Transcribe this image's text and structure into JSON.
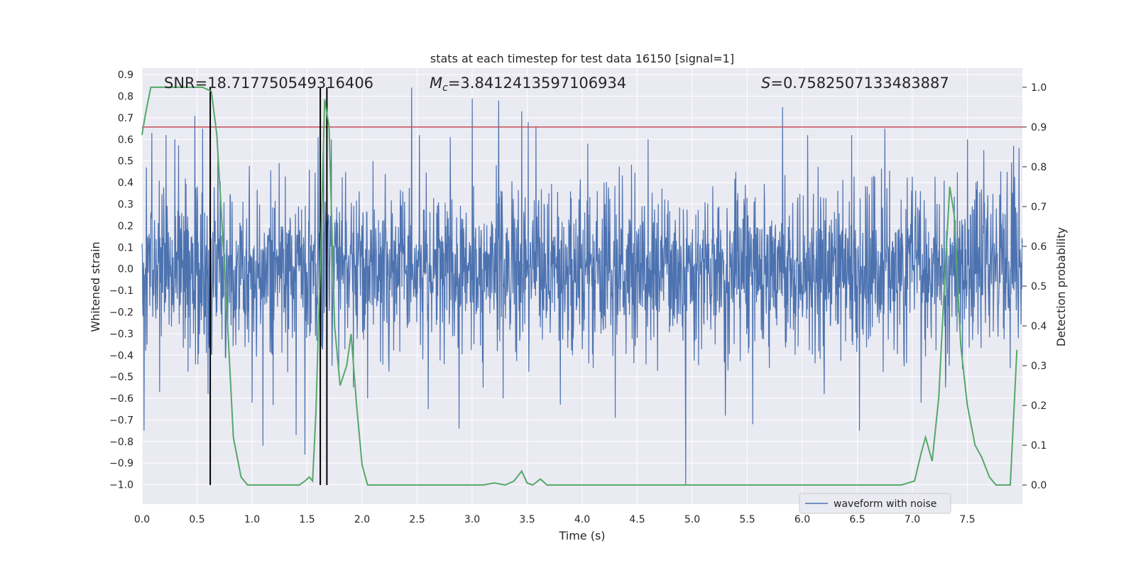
{
  "chart_data": {
    "type": "line",
    "title": "stats at each timestep for test data 16150 [signal=1]",
    "xlabel": "Time (s)",
    "ylabel": "Whitened strain",
    "y2label": "Detection probability",
    "xlim": [
      0.0,
      8.0
    ],
    "ylim": [
      -1.09,
      0.93
    ],
    "y2lim": [
      -0.048,
      1.048
    ],
    "xticks": [
      "0.0",
      "0.5",
      "1.0",
      "1.5",
      "2.0",
      "2.5",
      "3.0",
      "3.5",
      "4.0",
      "4.5",
      "5.0",
      "5.5",
      "6.0",
      "6.5",
      "7.0",
      "7.5"
    ],
    "xtick_values": [
      0.0,
      0.5,
      1.0,
      1.5,
      2.0,
      2.5,
      3.0,
      3.5,
      4.0,
      4.5,
      5.0,
      5.5,
      6.0,
      6.5,
      7.0,
      7.5
    ],
    "yticks": [
      "−1.0",
      "−0.9",
      "−0.8",
      "−0.7",
      "−0.6",
      "−0.5",
      "−0.4",
      "−0.3",
      "−0.2",
      "−0.1",
      "0.0",
      "0.1",
      "0.2",
      "0.3",
      "0.4",
      "0.5",
      "0.6",
      "0.7",
      "0.8",
      "0.9"
    ],
    "ytick_values": [
      -1.0,
      -0.9,
      -0.8,
      -0.7,
      -0.6,
      -0.5,
      -0.4,
      -0.3,
      -0.2,
      -0.1,
      0.0,
      0.1,
      0.2,
      0.3,
      0.4,
      0.5,
      0.6,
      0.7,
      0.8,
      0.9
    ],
    "y2ticks": [
      "0.0",
      "0.1",
      "0.2",
      "0.3",
      "0.4",
      "0.5",
      "0.6",
      "0.7",
      "0.8",
      "0.9",
      "1.0"
    ],
    "y2tick_values": [
      0.0,
      0.1,
      0.2,
      0.3,
      0.4,
      0.5,
      0.6,
      0.7,
      0.8,
      0.9,
      1.0
    ],
    "grid": true,
    "legend": {
      "position": "lower-right",
      "entries": [
        "waveform with noise"
      ]
    },
    "annotations": {
      "snr": "SNR=18.717750549316406",
      "mc_symbol": "M",
      "mc_sub": "c",
      "mc_value": "=3.8412413597106934",
      "s_symbol": "S",
      "s_value": "=0.7582507133483887"
    },
    "threshold": 0.9,
    "vlines": [
      0.62,
      1.62,
      1.68
    ],
    "colors": {
      "waveform": "#4c72b0",
      "probability": "#55a868",
      "threshold": "#c44e52",
      "vlines": "#000000",
      "background": "#eaeaf2",
      "grid": "#ffffff"
    },
    "series": [
      {
        "name": "waveform with noise",
        "kind": "whitened strain",
        "seed": 16150,
        "typical_envelope": 0.28,
        "spikes": [
          {
            "x": 0.02,
            "y": -0.75
          },
          {
            "x": 0.04,
            "y": 0.47
          },
          {
            "x": 0.09,
            "y": 0.63
          },
          {
            "x": 0.16,
            "y": -0.57
          },
          {
            "x": 0.22,
            "y": 0.62
          },
          {
            "x": 0.3,
            "y": 0.6
          },
          {
            "x": 0.48,
            "y": 0.71
          },
          {
            "x": 0.55,
            "y": 0.65
          },
          {
            "x": 0.6,
            "y": -0.58
          },
          {
            "x": 0.69,
            "y": 0.56
          },
          {
            "x": 1.0,
            "y": -0.62
          },
          {
            "x": 1.1,
            "y": -0.82
          },
          {
            "x": 1.4,
            "y": -0.77
          },
          {
            "x": 1.48,
            "y": -0.86
          },
          {
            "x": 1.6,
            "y": 0.61
          },
          {
            "x": 1.65,
            "y": 0.65
          },
          {
            "x": 1.72,
            "y": 0.6
          },
          {
            "x": 1.92,
            "y": -0.55
          },
          {
            "x": 2.05,
            "y": -0.6
          },
          {
            "x": 2.1,
            "y": 0.5
          },
          {
            "x": 2.45,
            "y": 0.84
          },
          {
            "x": 2.52,
            "y": 0.62
          },
          {
            "x": 2.6,
            "y": -0.65
          },
          {
            "x": 2.8,
            "y": 0.61
          },
          {
            "x": 2.88,
            "y": -0.74
          },
          {
            "x": 3.0,
            "y": 0.79
          },
          {
            "x": 3.1,
            "y": -0.55
          },
          {
            "x": 3.24,
            "y": 0.78
          },
          {
            "x": 3.28,
            "y": -0.6
          },
          {
            "x": 3.45,
            "y": 0.73
          },
          {
            "x": 3.51,
            "y": 0.68
          },
          {
            "x": 3.58,
            "y": 0.66
          },
          {
            "x": 3.8,
            "y": -0.63
          },
          {
            "x": 4.05,
            "y": 0.58
          },
          {
            "x": 4.3,
            "y": -0.69
          },
          {
            "x": 4.6,
            "y": 0.6
          },
          {
            "x": 4.94,
            "y": -1.0
          },
          {
            "x": 5.3,
            "y": -0.68
          },
          {
            "x": 5.55,
            "y": -0.72
          },
          {
            "x": 5.82,
            "y": 0.75
          },
          {
            "x": 6.05,
            "y": 0.62
          },
          {
            "x": 6.2,
            "y": -0.58
          },
          {
            "x": 6.45,
            "y": 0.62
          },
          {
            "x": 6.52,
            "y": -0.75
          },
          {
            "x": 6.75,
            "y": 0.65
          },
          {
            "x": 7.08,
            "y": -0.62
          },
          {
            "x": 7.3,
            "y": -0.55
          },
          {
            "x": 7.5,
            "y": 0.6
          },
          {
            "x": 7.65,
            "y": 0.55
          },
          {
            "x": 7.92,
            "y": 0.57
          },
          {
            "x": 7.97,
            "y": 0.56
          }
        ]
      },
      {
        "name": "",
        "kind": "detection probability",
        "x": [
          0.0,
          0.03,
          0.08,
          0.15,
          0.3,
          0.45,
          0.55,
          0.63,
          0.68,
          0.76,
          0.83,
          0.9,
          0.96,
          1.05,
          1.15,
          1.3,
          1.38,
          1.43,
          1.48,
          1.52,
          1.55,
          1.58,
          1.62,
          1.66,
          1.7,
          1.75,
          1.8,
          1.86,
          1.9,
          1.95,
          2.0,
          2.05,
          2.1,
          2.2,
          2.5,
          2.9,
          3.1,
          3.2,
          3.3,
          3.38,
          3.45,
          3.5,
          3.55,
          3.62,
          3.68,
          3.75,
          3.8,
          4.0,
          4.5,
          4.95,
          5.5,
          6.0,
          6.5,
          6.9,
          7.02,
          7.08,
          7.12,
          7.18,
          7.24,
          7.3,
          7.34,
          7.38,
          7.44,
          7.5,
          7.57,
          7.63,
          7.7,
          7.76,
          7.83,
          7.89,
          7.95
        ],
        "y": [
          0.88,
          0.93,
          1.0,
          1.0,
          1.0,
          1.0,
          1.0,
          0.99,
          0.88,
          0.5,
          0.12,
          0.02,
          0.0,
          0.0,
          0.0,
          0.0,
          0.0,
          0.0,
          0.01,
          0.02,
          0.01,
          0.18,
          0.55,
          0.97,
          0.9,
          0.4,
          0.25,
          0.3,
          0.38,
          0.2,
          0.05,
          0.0,
          0.0,
          0.0,
          0.0,
          0.0,
          0.0,
          0.005,
          0.0,
          0.01,
          0.035,
          0.005,
          0.0,
          0.015,
          0.0,
          0.0,
          0.0,
          0.0,
          0.0,
          0.0,
          0.0,
          0.0,
          0.0,
          0.0,
          0.01,
          0.08,
          0.12,
          0.06,
          0.22,
          0.55,
          0.75,
          0.68,
          0.35,
          0.2,
          0.1,
          0.07,
          0.02,
          0.0,
          0.0,
          0.0,
          0.34
        ]
      }
    ]
  }
}
